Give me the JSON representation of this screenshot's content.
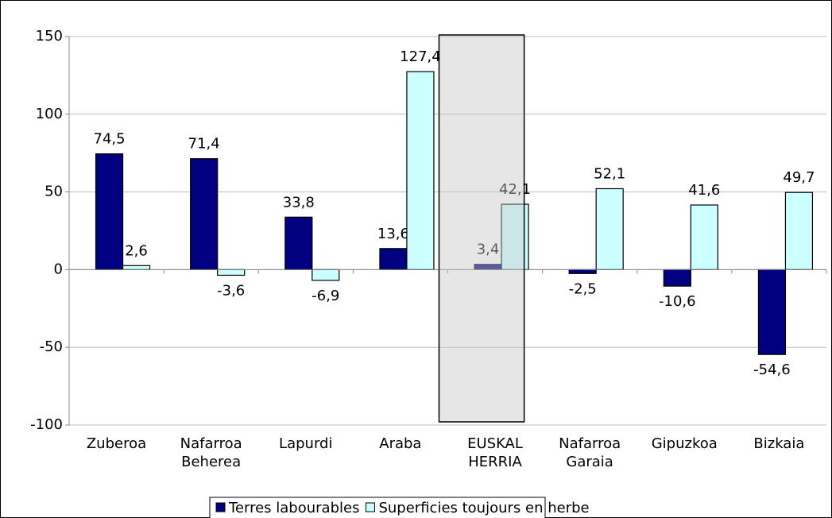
{
  "chart_data": {
    "type": "bar",
    "categories": [
      "Zuberoa",
      "Nafarroa\nBeherea",
      "Lapurdi",
      "Araba",
      "EUSKAL\nHERRIA",
      "Nafarroa\nGaraia",
      "Gipuzkoa",
      "Bizkaia"
    ],
    "series": [
      {
        "name": "Terres labourables",
        "color": "#000080",
        "values": [
          74.5,
          71.4,
          33.8,
          13.6,
          3.4,
          -2.5,
          -10.6,
          -54.6
        ],
        "value_labels": [
          "74,5",
          "71,4",
          "33,8",
          "13,6",
          "3,4",
          "-2,5",
          "-10,6",
          "-54,6"
        ]
      },
      {
        "name": "Superficies toujours en herbe",
        "color": "#ccffff",
        "values": [
          2.6,
          -3.6,
          -6.9,
          127.4,
          42.1,
          52.1,
          41.6,
          49.7
        ],
        "value_labels": [
          "2,6",
          "-3,6",
          "-6,9",
          "127,4",
          "42,1",
          "52,1",
          "41,6",
          "49,7"
        ]
      }
    ],
    "ylim": [
      -100,
      150
    ],
    "yticks": [
      -100,
      -50,
      0,
      50,
      100,
      150
    ],
    "grid": true,
    "legend": "bottom"
  }
}
